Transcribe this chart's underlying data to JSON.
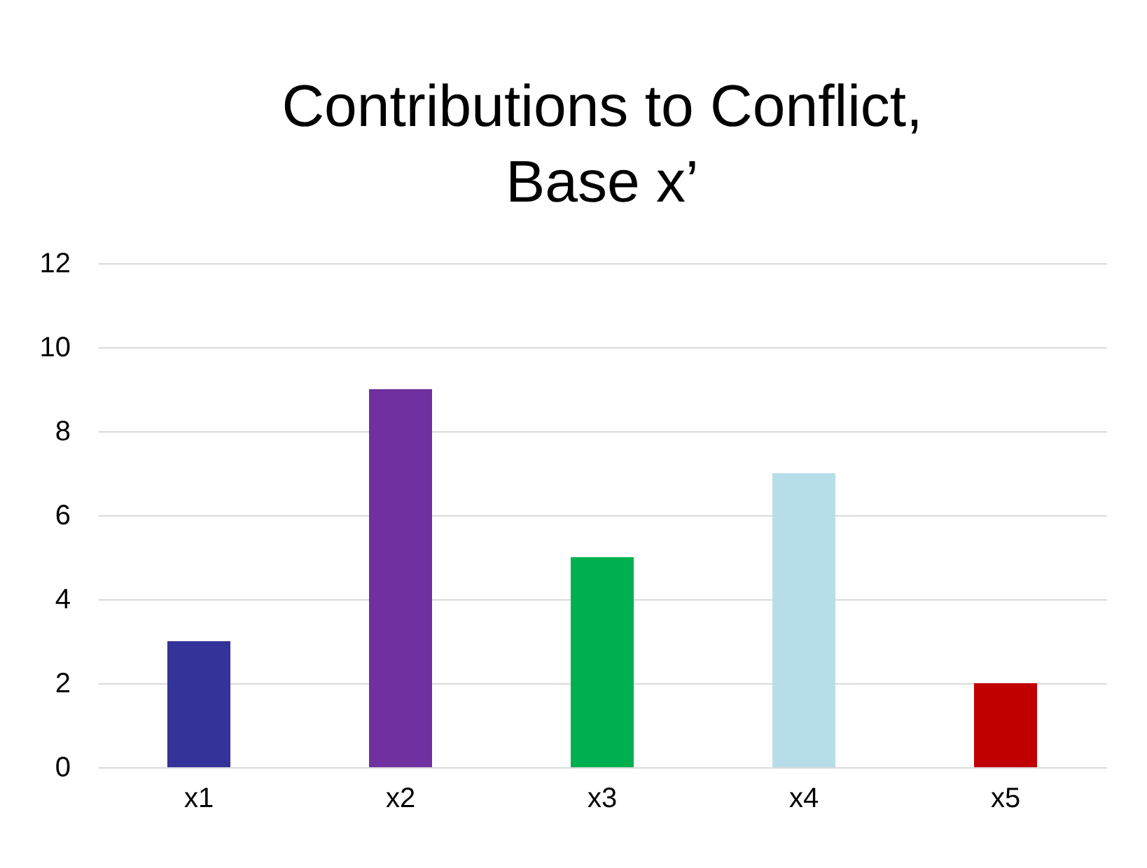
{
  "chart_data": {
    "type": "bar",
    "title": "Contributions to Conflict,\nBase x’",
    "categories": [
      "x1",
      "x2",
      "x3",
      "x4",
      "x5"
    ],
    "values": [
      3,
      9,
      5,
      7,
      2
    ],
    "colors": [
      "#333399",
      "#7030a0",
      "#00b050",
      "#b7dee8",
      "#c00000"
    ],
    "ylim": [
      0,
      12
    ],
    "yticks": [
      0,
      2,
      4,
      6,
      8,
      10,
      12
    ],
    "grid": "y"
  }
}
